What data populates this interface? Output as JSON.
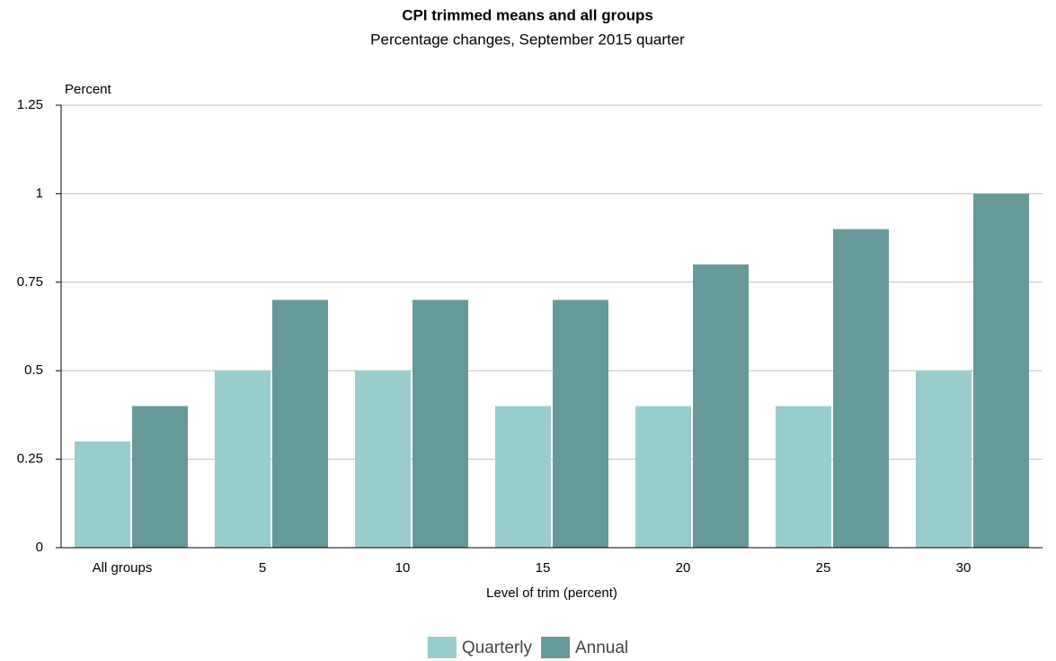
{
  "chart_data": {
    "type": "bar",
    "title": "CPI trimmed means and all groups",
    "subtitle": "Percentage changes, September 2015 quarter",
    "y_label": "Percent",
    "x_label": "Level of trim (percent)",
    "categories": [
      "All groups",
      "5",
      "10",
      "15",
      "20",
      "25",
      "30"
    ],
    "series": [
      {
        "name": "Quarterly",
        "color": "#99cccc",
        "values": [
          0.3,
          0.5,
          0.5,
          0.4,
          0.4,
          0.4,
          0.5
        ]
      },
      {
        "name": "Annual",
        "color": "#669999",
        "values": [
          0.4,
          0.7,
          0.7,
          0.7,
          0.8,
          0.9,
          1.0
        ]
      }
    ],
    "ylim": [
      0,
      1.25
    ],
    "yticks": [
      0,
      0.25,
      0.5,
      0.75,
      1,
      1.25
    ],
    "grid": true,
    "legend": "bottom"
  }
}
